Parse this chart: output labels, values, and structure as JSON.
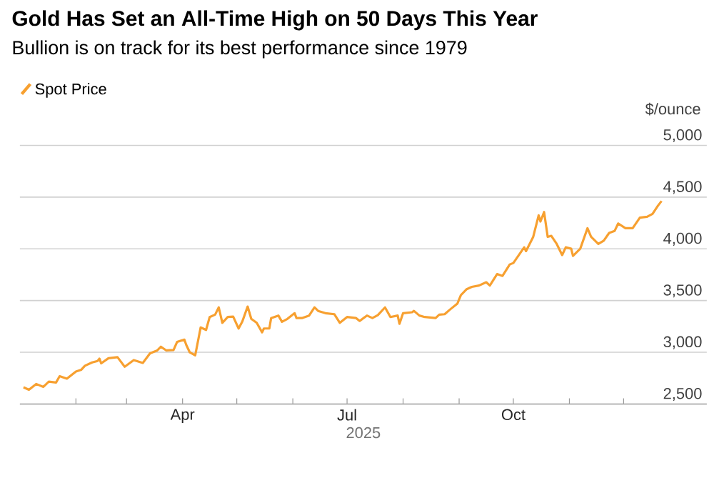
{
  "chart_data": {
    "type": "line",
    "title": "Gold Has Set an All-Time High on 50 Days This Year",
    "subtitle": "Bullion is on track for its best performance since 1979",
    "ylabel": "$/ounce",
    "xlabel": "2025",
    "legend": "top left",
    "grid": "y",
    "marker": "none",
    "line_style": "solid",
    "xlim": [
      "2025-01-01",
      "2026-01-16"
    ],
    "xticks": [
      {
        "value": "2025-02-01",
        "label": null
      },
      {
        "value": "2025-03-01",
        "label": null
      },
      {
        "value": "2025-04-01",
        "label": "Apr"
      },
      {
        "value": "2025-05-01",
        "label": null
      },
      {
        "value": "2025-06-01",
        "label": null
      },
      {
        "value": "2025-07-01",
        "label": "Jul"
      },
      {
        "value": "2025-08-01",
        "label": null
      },
      {
        "value": "2025-09-01",
        "label": null
      },
      {
        "value": "2025-10-01",
        "label": "Oct"
      },
      {
        "value": "2025-11-01",
        "label": null
      },
      {
        "value": "2025-12-01",
        "label": null
      }
    ],
    "ylim": [
      2500,
      5000
    ],
    "yticks": [
      {
        "value": 2500,
        "label": "2,500"
      },
      {
        "value": 3000,
        "label": "3,000"
      },
      {
        "value": 3500,
        "label": "3,500"
      },
      {
        "value": 4000,
        "label": "4,000"
      },
      {
        "value": 4500,
        "label": "4,500"
      },
      {
        "value": 5000,
        "label": "5,000"
      }
    ],
    "x": [
      "2025-01-03",
      "2025-01-06",
      "2025-01-10",
      "2025-01-14",
      "2025-01-17",
      "2025-01-21",
      "2025-01-23",
      "2025-01-27",
      "2025-02-01",
      "2025-02-04",
      "2025-02-06",
      "2025-02-10",
      "2025-02-13",
      "2025-02-14",
      "2025-02-15",
      "2025-02-19",
      "2025-02-24",
      "2025-02-28",
      "2025-03-05",
      "2025-03-10",
      "2025-03-14",
      "2025-03-18",
      "2025-03-20",
      "2025-03-23",
      "2025-03-27",
      "2025-03-29",
      "2025-04-02",
      "2025-04-03",
      "2025-04-05",
      "2025-04-08",
      "2025-04-11",
      "2025-04-14",
      "2025-04-16",
      "2025-04-19",
      "2025-04-21",
      "2025-04-23",
      "2025-04-26",
      "2025-04-29",
      "2025-05-02",
      "2025-05-04",
      "2025-05-07",
      "2025-05-09",
      "2025-05-12",
      "2025-05-15",
      "2025-05-16",
      "2025-05-19",
      "2025-05-20",
      "2025-05-24",
      "2025-05-26",
      "2025-05-29",
      "2025-06-02",
      "2025-06-03",
      "2025-06-06",
      "2025-06-10",
      "2025-06-13",
      "2025-06-15",
      "2025-06-19",
      "2025-06-24",
      "2025-06-27",
      "2025-07-01",
      "2025-07-06",
      "2025-07-08",
      "2025-07-12",
      "2025-07-15",
      "2025-07-18",
      "2025-07-22",
      "2025-07-25",
      "2025-07-29",
      "2025-07-30",
      "2025-08-01",
      "2025-08-06",
      "2025-08-07",
      "2025-08-10",
      "2025-08-13",
      "2025-08-19",
      "2025-08-21",
      "2025-08-24",
      "2025-08-27",
      "2025-08-31",
      "2025-09-02",
      "2025-09-05",
      "2025-09-08",
      "2025-09-12",
      "2025-09-16",
      "2025-09-18",
      "2025-09-22",
      "2025-09-25",
      "2025-09-29",
      "2025-10-01",
      "2025-10-07",
      "2025-10-08",
      "2025-10-12",
      "2025-10-15",
      "2025-10-16",
      "2025-10-18",
      "2025-10-20",
      "2025-10-22",
      "2025-10-25",
      "2025-10-28",
      "2025-10-30",
      "2025-11-02",
      "2025-11-03",
      "2025-11-07",
      "2025-11-11",
      "2025-11-13",
      "2025-11-17",
      "2025-11-20",
      "2025-11-23",
      "2025-11-26",
      "2025-11-28",
      "2025-12-02",
      "2025-12-06",
      "2025-12-10",
      "2025-12-14",
      "2025-12-17",
      "2025-12-20",
      "2025-12-22"
    ],
    "series": [
      {
        "name": "Spot Price",
        "color": "#f7a030",
        "values": [
          2662,
          2638,
          2694,
          2666,
          2717,
          2708,
          2769,
          2745,
          2814,
          2832,
          2870,
          2902,
          2916,
          2939,
          2893,
          2943,
          2953,
          2860,
          2925,
          2897,
          2990,
          3018,
          3054,
          3018,
          3022,
          3101,
          3123,
          3073,
          2999,
          2971,
          3240,
          3216,
          3341,
          3364,
          3434,
          3285,
          3341,
          3345,
          3230,
          3295,
          3442,
          3323,
          3285,
          3193,
          3230,
          3230,
          3331,
          3355,
          3295,
          3323,
          3378,
          3331,
          3331,
          3355,
          3434,
          3400,
          3378,
          3368,
          3285,
          3341,
          3331,
          3303,
          3355,
          3331,
          3359,
          3434,
          3341,
          3355,
          3276,
          3378,
          3387,
          3400,
          3355,
          3341,
          3331,
          3364,
          3368,
          3414,
          3470,
          3553,
          3608,
          3632,
          3645,
          3677,
          3645,
          3756,
          3738,
          3849,
          3863,
          4015,
          3978,
          4116,
          4324,
          4264,
          4356,
          4116,
          4126,
          4047,
          3940,
          4015,
          4001,
          3932,
          4001,
          4199,
          4116,
          4047,
          4079,
          4154,
          4172,
          4245,
          4199,
          4199,
          4301,
          4310,
          4338,
          4417,
          4462
        ]
      }
    ]
  }
}
